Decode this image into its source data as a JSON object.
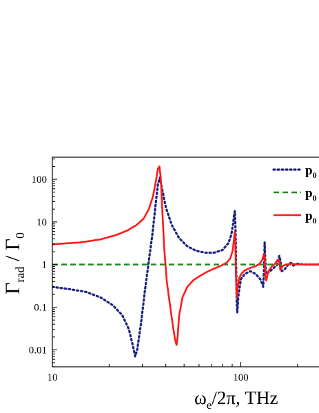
{
  "chart_data": {
    "type": "line",
    "xscale": "log",
    "yscale": "log",
    "xlim": [
      10,
      260
    ],
    "ylim": [
      0.004,
      330
    ],
    "xticks": [
      {
        "value": 10,
        "label": "10"
      },
      {
        "value": 100,
        "label": "100"
      }
    ],
    "yticks": [
      {
        "value": 0.01,
        "label": "0.01"
      },
      {
        "value": 0.1,
        "label": "0.1"
      },
      {
        "value": 1,
        "label": "1"
      },
      {
        "value": 10,
        "label": "10"
      },
      {
        "value": 100,
        "label": "100"
      }
    ],
    "xlabel": {
      "main": "ω",
      "sub": "e",
      "rest": "/2π, THz"
    },
    "ylabel": {
      "g1": "Γ",
      "sub": "rad",
      "rest": " / Γ",
      "sub2": "0"
    },
    "legend_position": "top-right",
    "series": [
      {
        "name_main": "p",
        "name_sub": "0",
        "color": "#1a237e",
        "dash": "2 4",
        "width": 3.2,
        "linecap": "round",
        "x": [
          10,
          12,
          15,
          18,
          21,
          23.5,
          25.5,
          26.8,
          27.5,
          28.2,
          29.5,
          31,
          32.5,
          34,
          35.3,
          36.3,
          37.2,
          38.2,
          40,
          43,
          47,
          52,
          58,
          65,
          72,
          80,
          86,
          89,
          91,
          92,
          93,
          93.8,
          94.5,
          95,
          95.8,
          97,
          100,
          105,
          112,
          120,
          127,
          130,
          131.5,
          133,
          133.8,
          134.6,
          136,
          140,
          148,
          155,
          158,
          160,
          162,
          165,
          172,
          180,
          185,
          190,
          200,
          215,
          235,
          260
        ],
        "y": [
          0.3,
          0.27,
          0.23,
          0.17,
          0.11,
          0.065,
          0.03,
          0.012,
          0.007,
          0.01,
          0.04,
          0.25,
          1.2,
          5.5,
          25,
          75,
          110,
          60,
          22,
          8.5,
          4.2,
          2.7,
          2.1,
          1.9,
          1.9,
          2.2,
          3.2,
          5,
          9,
          14,
          18,
          6,
          0.8,
          0.15,
          0.075,
          0.18,
          0.45,
          0.6,
          0.7,
          0.6,
          0.45,
          0.35,
          0.3,
          0.9,
          3.3,
          1.5,
          0.6,
          0.65,
          0.8,
          0.95,
          1.2,
          1.6,
          1.3,
          0.7,
          0.8,
          1.05,
          1.1,
          0.95,
          1.05,
          1.0,
          1.0,
          1.0
        ]
      },
      {
        "name_main": "p",
        "name_sub": "0",
        "color": "#228b22",
        "dash": "8 5",
        "width": 2.6,
        "linecap": "butt",
        "x": [
          10,
          260
        ],
        "y": [
          1,
          1
        ]
      },
      {
        "name_main": "p",
        "name_sub": "0",
        "color": "#ff1a1a",
        "dash": "",
        "width": 2.6,
        "linecap": "butt",
        "x": [
          10,
          14,
          18,
          22,
          25,
          28,
          30.5,
          32.5,
          34.2,
          35.5,
          36.3,
          37,
          37.6,
          38.3,
          39.2,
          40.5,
          42,
          43.5,
          44.7,
          45.6,
          46.2,
          47,
          49,
          52,
          56,
          61,
          66,
          72,
          78,
          84,
          88,
          90.5,
          92,
          92.8,
          93.5,
          94.2,
          95,
          96,
          98,
          101,
          105,
          112,
          120,
          126,
          130,
          132.5,
          134,
          135,
          136.5,
          140,
          146,
          152,
          157,
          160,
          162,
          164,
          168,
          175,
          185,
          200,
          220,
          240,
          260
        ],
        "y": [
          3.0,
          3.3,
          3.9,
          5.0,
          6.3,
          8.5,
          12,
          20,
          40,
          95,
          175,
          200,
          110,
          20,
          2.5,
          0.4,
          0.12,
          0.04,
          0.018,
          0.013,
          0.02,
          0.06,
          0.17,
          0.3,
          0.43,
          0.55,
          0.67,
          0.8,
          0.93,
          1.1,
          1.4,
          2.1,
          3.8,
          5.8,
          3.5,
          0.6,
          0.17,
          0.28,
          0.48,
          0.62,
          0.73,
          0.83,
          0.92,
          1.05,
          1.3,
          1.75,
          1.5,
          0.55,
          0.42,
          0.7,
          0.9,
          1.05,
          1.3,
          1.25,
          0.75,
          0.82,
          0.95,
          1.0,
          1.05,
          1.0,
          1.0,
          1.0,
          1.0
        ]
      }
    ]
  }
}
